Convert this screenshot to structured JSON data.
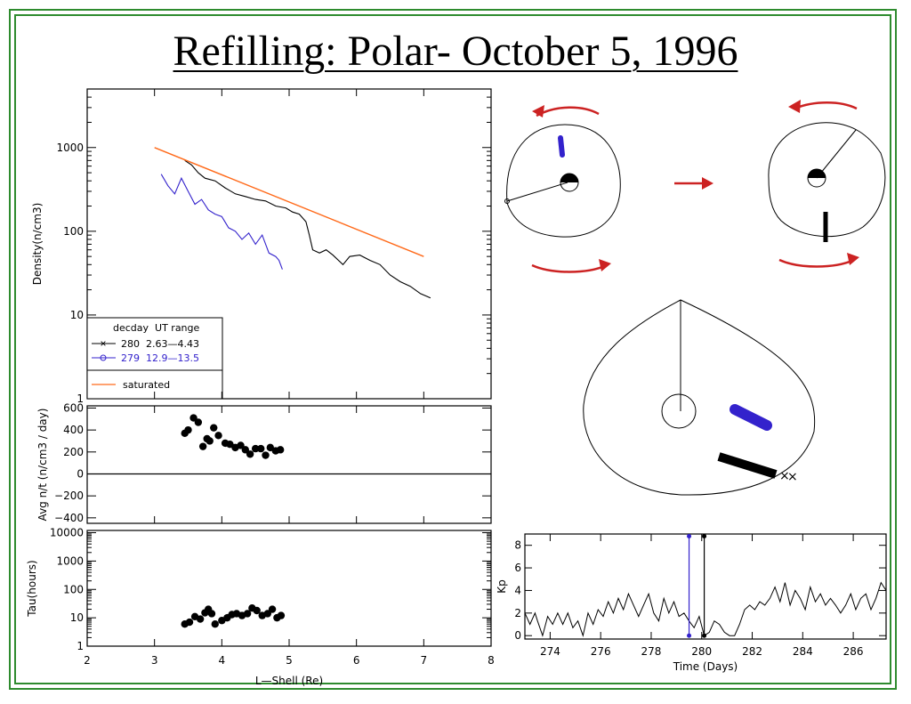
{
  "title": "Refilling: Polar- October 5, 1996",
  "colors": {
    "frame": "#2e8b2e",
    "series_280": "#000000",
    "series_279": "#3322cc",
    "saturated": "#ff6a1a",
    "arrow": "#cc2222"
  },
  "chart_data": [
    {
      "id": "density",
      "type": "line",
      "ylabel": "Density(n/cm3)",
      "yscale": "log",
      "ylim": [
        1,
        5000
      ],
      "xlim": [
        2,
        8
      ],
      "yticks": [
        1,
        10,
        100,
        1000
      ],
      "yticklabels": [
        "1",
        "10",
        "100",
        "1000"
      ],
      "legend": {
        "position": "bottom-left",
        "header": "decday  UT range",
        "entries": [
          "280  2.63—4.43",
          "279  12.9—13.5",
          "saturated"
        ]
      },
      "series": [
        {
          "name": "280 2.63—4.43",
          "color": "#000000",
          "x": [
            3.45,
            3.55,
            3.65,
            3.75,
            3.9,
            4.05,
            4.2,
            4.35,
            4.5,
            4.65,
            4.8,
            4.95,
            5.05,
            5.15,
            5.25,
            5.3,
            5.35,
            5.45,
            5.55,
            5.65,
            5.8,
            5.9,
            6.05,
            6.2,
            6.35,
            6.5,
            6.65,
            6.8,
            6.95,
            7.1
          ],
          "y": [
            700,
            620,
            500,
            430,
            400,
            330,
            280,
            260,
            240,
            230,
            200,
            190,
            170,
            160,
            130,
            90,
            60,
            55,
            60,
            52,
            40,
            50,
            52,
            45,
            40,
            30,
            25,
            22,
            18,
            16
          ]
        },
        {
          "name": "279 12.9—13.5",
          "color": "#3322cc",
          "x": [
            3.1,
            3.2,
            3.3,
            3.4,
            3.5,
            3.6,
            3.7,
            3.8,
            3.9,
            4.0,
            4.1,
            4.2,
            4.3,
            4.4,
            4.5,
            4.6,
            4.7,
            4.8,
            4.85,
            4.9
          ],
          "y": [
            480,
            350,
            280,
            430,
            300,
            210,
            240,
            180,
            160,
            150,
            110,
            100,
            80,
            95,
            70,
            90,
            55,
            50,
            45,
            35
          ]
        },
        {
          "name": "saturated",
          "color": "#ff6a1a",
          "x": [
            3.0,
            7.0
          ],
          "y": [
            1000,
            50
          ]
        }
      ]
    },
    {
      "id": "avg",
      "type": "scatter",
      "ylabel": "Avg n/t (n/cm3 / day)",
      "ylim": [
        -450,
        620
      ],
      "xlim": [
        2,
        8
      ],
      "yticks": [
        -400,
        -200,
        0,
        200,
        400,
        600
      ],
      "yticklabels": [
        "−400",
        "−200",
        "0",
        "200",
        "400",
        "600"
      ],
      "points": {
        "x": [
          3.45,
          3.5,
          3.58,
          3.65,
          3.72,
          3.78,
          3.82,
          3.88,
          3.95,
          4.05,
          4.12,
          4.2,
          4.28,
          4.35,
          4.42,
          4.5,
          4.58,
          4.65,
          4.72,
          4.8,
          4.87
        ],
        "y": [
          370,
          400,
          510,
          470,
          250,
          320,
          300,
          420,
          350,
          280,
          270,
          240,
          260,
          220,
          180,
          230,
          230,
          170,
          240,
          210,
          220
        ]
      }
    },
    {
      "id": "tau",
      "type": "scatter",
      "ylabel": "Tau(hours)",
      "yscale": "log",
      "ylim": [
        1,
        12000
      ],
      "xlim": [
        2,
        8
      ],
      "xticks": [
        2,
        3,
        4,
        5,
        6,
        7,
        8
      ],
      "xticklabels": [
        "2",
        "3",
        "4",
        "5",
        "6",
        "7",
        "8"
      ],
      "yticks": [
        1,
        10,
        100,
        1000,
        10000
      ],
      "yticklabels": [
        "1",
        "10",
        "100",
        "1000",
        "10000"
      ],
      "xlabel": "L—Shell (Re)",
      "points": {
        "x": [
          3.45,
          3.52,
          3.6,
          3.68,
          3.75,
          3.8,
          3.85,
          3.9,
          4.0,
          4.08,
          4.15,
          4.22,
          4.3,
          4.38,
          4.45,
          4.52,
          4.6,
          4.68,
          4.75,
          4.82,
          4.88
        ],
        "y": [
          6,
          7,
          11,
          9,
          15,
          20,
          14,
          6,
          8,
          10,
          13,
          14,
          12,
          14,
          22,
          18,
          12,
          14,
          20,
          10,
          12
        ]
      }
    },
    {
      "id": "kp",
      "type": "line",
      "ylabel": "Kp",
      "xlabel": "Time (Days)",
      "xlim": [
        273,
        287.3
      ],
      "ylim": [
        -0.3,
        9
      ],
      "xticks": [
        274,
        276,
        278,
        280,
        282,
        284,
        286
      ],
      "xticklabels": [
        "274",
        "276",
        "278",
        "280",
        "282",
        "284",
        "286"
      ],
      "yticks": [
        0,
        2,
        4,
        6,
        8
      ],
      "yticklabels": [
        "0",
        "2",
        "4",
        "6",
        "8"
      ],
      "series": [
        {
          "name": "Kp",
          "color": "#000000",
          "x": [
            273,
            273.2,
            273.4,
            273.5,
            273.7,
            273.9,
            274.1,
            274.3,
            274.5,
            274.7,
            274.9,
            275.1,
            275.3,
            275.5,
            275.7,
            275.9,
            276.1,
            276.3,
            276.5,
            276.7,
            276.9,
            277.1,
            277.3,
            277.5,
            277.7,
            277.9,
            278.1,
            278.3,
            278.5,
            278.7,
            278.9,
            279.1,
            279.3,
            279.5,
            279.7,
            279.9,
            280.1,
            280.3,
            280.5,
            280.7,
            280.9,
            281.1,
            281.3,
            281.5,
            281.7,
            281.9,
            282.1,
            282.3,
            282.5,
            282.7,
            282.9,
            283.1,
            283.3,
            283.5,
            283.7,
            283.9,
            284.1,
            284.3,
            284.5,
            284.7,
            284.9,
            285.1,
            285.3,
            285.5,
            285.7,
            285.9,
            286.1,
            286.3,
            286.5,
            286.7,
            286.9,
            287.1,
            287.3
          ],
          "y": [
            2,
            1,
            2,
            1.3,
            0,
            1.7,
            1,
            2,
            1,
            2,
            0.7,
            1.3,
            0,
            2,
            1,
            2.3,
            1.7,
            3,
            2,
            3.3,
            2.3,
            3.7,
            2.7,
            1.7,
            2.7,
            3.7,
            2,
            1.3,
            3.3,
            2,
            3,
            1.7,
            2,
            1.3,
            0.7,
            1.7,
            0,
            0.3,
            1.3,
            1,
            0.3,
            0,
            0,
            1,
            2.3,
            2.7,
            2.3,
            3,
            2.7,
            3.3,
            4.3,
            3,
            4.7,
            2.7,
            4,
            3.3,
            2.3,
            4.3,
            3,
            3.7,
            2.7,
            3.3,
            2.7,
            2,
            2.7,
            3.7,
            2.3,
            3.3,
            3.7,
            2.3,
            3.3,
            4.7,
            4
          ]
        }
      ],
      "markers": [
        {
          "x": 279.5,
          "color": "#3322cc",
          "label": "279"
        },
        {
          "x": 280.1,
          "color": "#000000",
          "label": "280"
        }
      ]
    }
  ]
}
